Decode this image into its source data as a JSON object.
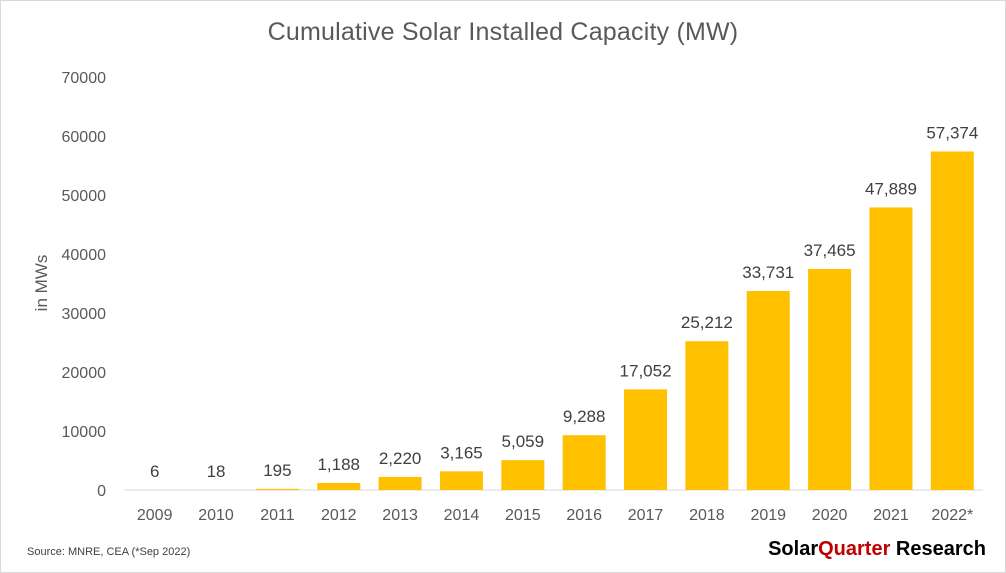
{
  "chart_data": {
    "type": "bar",
    "title": "Cumulative Solar Installed Capacity (MW)",
    "ylabel": "in MWs",
    "xlabel": "",
    "categories": [
      "2009",
      "2010",
      "2011",
      "2012",
      "2013",
      "2014",
      "2015",
      "2016",
      "2017",
      "2018",
      "2019",
      "2020",
      "2021",
      "2022*"
    ],
    "values": [
      6,
      18,
      195,
      1188,
      2220,
      3165,
      5059,
      9288,
      17052,
      25212,
      33731,
      37465,
      47889,
      57374
    ],
    "data_labels": [
      "6",
      "18",
      "195",
      "1,188",
      "2,220",
      "3,165",
      "5,059",
      "9,288",
      "17,052",
      "25,212",
      "33,731",
      "37,465",
      "47,889",
      "57,374"
    ],
    "ylim": [
      0,
      70000
    ],
    "yticks": [
      "0",
      "10000",
      "20000",
      "30000",
      "40000",
      "50000",
      "60000",
      "70000"
    ],
    "grid": false,
    "legend": "none",
    "bar_color": "#FFC000"
  },
  "footer": {
    "source": "Source: MNRE, CEA (*Sep 2022)",
    "brand_part1": "Solar",
    "brand_part2": "Quarter",
    "brand_part3": " Research",
    "brand_accent_color": "#C00000"
  }
}
